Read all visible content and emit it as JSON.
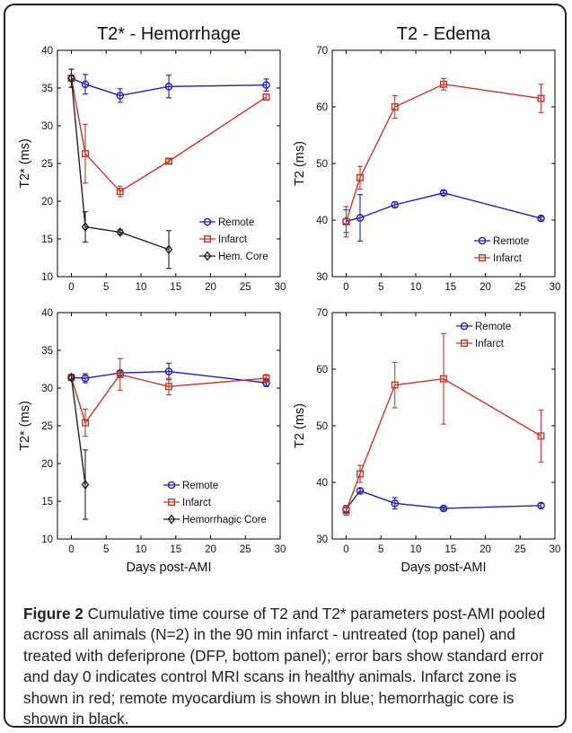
{
  "caption": {
    "label": "Figure 2",
    "text": "Cumulative time course of T2 and T2* parameters post-AMI pooled across all animals (N=2) in the 90 min infarct - untreated (top panel) and treated with deferiprone (DFP, bottom panel); error bars show standard error and day 0 indicates control MRI scans in healthy animals. Infarct zone is shown in red; remote myocardium is shown in blue; hemorrhagic core is shown in black."
  },
  "colors": {
    "remote": "#1f1fa8",
    "infarct": "#c0392b",
    "core": "#222222"
  },
  "chart_data": [
    {
      "type": "line",
      "title": "T2* - Hemorrhage",
      "xlabel": "",
      "ylabel": "T2* (ms)",
      "xlim": [
        -2,
        30
      ],
      "ylim": [
        10,
        40
      ],
      "xticks": [
        0,
        5,
        10,
        15,
        20,
        25,
        30
      ],
      "yticks": [
        10,
        15,
        20,
        25,
        30,
        35,
        40
      ],
      "legend_position": "bottom-right",
      "series": [
        {
          "name": "Remote",
          "color": "remote",
          "marker": "circle",
          "x": [
            0,
            2,
            7,
            14,
            28
          ],
          "y": [
            36.3,
            35.5,
            34.0,
            35.2,
            35.4
          ],
          "err": [
            1.2,
            1.3,
            0.9,
            1.5,
            0.8
          ]
        },
        {
          "name": "Infarct",
          "color": "infarct",
          "marker": "square",
          "x": [
            0,
            2,
            7,
            14,
            28
          ],
          "y": [
            36.3,
            26.3,
            21.3,
            25.3,
            33.8
          ],
          "err": [
            1.2,
            3.9,
            0.7,
            0.3,
            0.4
          ]
        },
        {
          "name": "Hem. Core",
          "color": "core",
          "marker": "diamond",
          "x": [
            0,
            2,
            7,
            14
          ],
          "y": [
            36.3,
            16.6,
            15.9,
            13.6
          ],
          "err": [
            1.2,
            2.0,
            0.3,
            2.5
          ]
        }
      ]
    },
    {
      "type": "line",
      "title": "T2 - Edema",
      "xlabel": "",
      "ylabel": "T2 (ms)",
      "xlim": [
        -2,
        30
      ],
      "ylim": [
        30,
        70
      ],
      "xticks": [
        0,
        5,
        10,
        15,
        20,
        25,
        30
      ],
      "yticks": [
        30,
        40,
        50,
        60,
        70
      ],
      "legend_position": "bottom-right",
      "series": [
        {
          "name": "Remote",
          "color": "remote",
          "marker": "circle",
          "x": [
            0,
            2,
            7,
            14,
            28
          ],
          "y": [
            39.8,
            40.4,
            42.7,
            44.8,
            40.3
          ],
          "err": [
            2.0,
            4.1,
            0.5,
            0.4,
            0.3
          ]
        },
        {
          "name": "Infarct",
          "color": "infarct",
          "marker": "square",
          "x": [
            0,
            2,
            7,
            14,
            28
          ],
          "y": [
            39.7,
            47.5,
            60.0,
            64.0,
            61.5
          ],
          "err": [
            2.7,
            2.0,
            2.0,
            1.0,
            2.5
          ]
        }
      ]
    },
    {
      "type": "line",
      "title": "",
      "xlabel": "Days post-AMI",
      "ylabel": "T2* (ms)",
      "xlim": [
        -2,
        30
      ],
      "ylim": [
        10,
        40
      ],
      "xticks": [
        0,
        5,
        10,
        15,
        20,
        25,
        30
      ],
      "yticks": [
        10,
        15,
        20,
        25,
        30,
        35,
        40
      ],
      "legend_position": "bottom-right",
      "series": [
        {
          "name": "Remote",
          "color": "remote",
          "marker": "circle",
          "x": [
            0,
            2,
            7,
            14,
            28
          ],
          "y": [
            31.4,
            31.3,
            32.0,
            32.2,
            30.7
          ],
          "err": [
            0.3,
            0.6,
            0.3,
            1.1,
            0.5
          ]
        },
        {
          "name": "Infarct",
          "color": "infarct",
          "marker": "square",
          "x": [
            0,
            2,
            7,
            14,
            28
          ],
          "y": [
            31.4,
            25.4,
            31.8,
            30.2,
            31.3
          ],
          "err": [
            0.3,
            1.8,
            2.1,
            1.1,
            0.5
          ]
        },
        {
          "name": "Hemorrhagic Core",
          "color": "core",
          "marker": "diamond",
          "x": [
            0,
            2
          ],
          "y": [
            31.4,
            17.2
          ],
          "err": [
            0.3,
            4.6
          ]
        }
      ]
    },
    {
      "type": "line",
      "title": "",
      "xlabel": "Days post-AMI",
      "ylabel": "T2 (ms)",
      "xlim": [
        -2,
        30
      ],
      "ylim": [
        30,
        70
      ],
      "xticks": [
        0,
        5,
        10,
        15,
        20,
        25,
        30
      ],
      "yticks": [
        30,
        40,
        50,
        60,
        70
      ],
      "legend_position": "top-right",
      "series": [
        {
          "name": "Remote",
          "color": "remote",
          "marker": "circle",
          "x": [
            0,
            2,
            7,
            14,
            28
          ],
          "y": [
            35.3,
            38.5,
            36.3,
            35.4,
            35.9
          ],
          "err": [
            0.6,
            0.4,
            1.0,
            0.3,
            0.4
          ]
        },
        {
          "name": "Infarct",
          "color": "infarct",
          "marker": "square",
          "x": [
            0,
            2,
            7,
            14,
            28
          ],
          "y": [
            35.0,
            41.5,
            57.2,
            58.3,
            48.2
          ],
          "err": [
            0.8,
            1.5,
            4.0,
            8.0,
            4.6
          ]
        }
      ]
    }
  ]
}
